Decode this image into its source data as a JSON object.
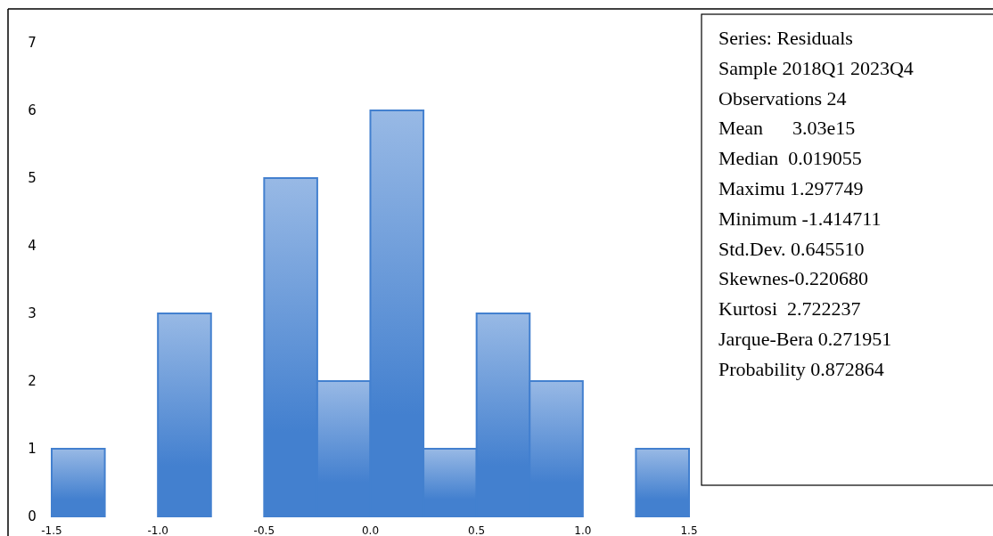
{
  "chart_data": {
    "type": "histogram",
    "bins": [
      -1.5,
      -1.25,
      -1.0,
      -0.75,
      -0.5,
      -0.25,
      0.0,
      0.25,
      0.5,
      0.75,
      1.0,
      1.25,
      1.5
    ],
    "values": [
      1,
      0,
      3,
      0,
      5,
      2,
      6,
      1,
      3,
      2,
      0,
      1
    ],
    "color": "#4380cf",
    "xlim": [
      -1.5,
      1.5
    ],
    "xticks": [
      {
        "value": -1.5,
        "label": "-1.5"
      },
      {
        "value": -1.0,
        "label": "-1.0"
      },
      {
        "value": -0.5,
        "label": "-0.5"
      },
      {
        "value": 0,
        "label": "0.0"
      },
      {
        "value": 0.5,
        "label": "0.5"
      },
      {
        "value": 1.0,
        "label": "1.0"
      },
      {
        "value": 1.5,
        "label": "1.5"
      }
    ],
    "ylim": [
      0,
      7
    ],
    "yticks": [
      0,
      1,
      2,
      3,
      4,
      5,
      6,
      7
    ],
    "grid": false,
    "annotations": [
      "Series: Residuals",
      "Sample 2018Q1 2023Q4",
      "Observations 24",
      "Mean      3.03e15",
      "Median  0.019055",
      "Maximu 1.297749",
      "Minimum -1.414711",
      "Std.Dev. 0.645510",
      "Skewnes-0.220680",
      "Kurtosi  2.722237",
      "Jarque-Bera 0.271951",
      "Probability 0.872864"
    ]
  }
}
